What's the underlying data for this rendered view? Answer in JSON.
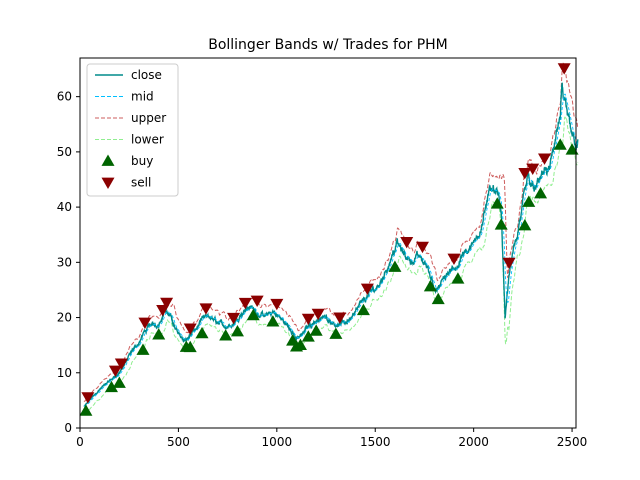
{
  "chart_data": {
    "type": "line",
    "title": "Bollinger Bands w/ Trades for PHM",
    "xlabel": "",
    "ylabel": "",
    "xlim": [
      0,
      2520
    ],
    "ylim": [
      0,
      67
    ],
    "xticks": [
      0,
      500,
      1000,
      1500,
      2000,
      2500
    ],
    "yticks": [
      0,
      10,
      20,
      30,
      40,
      50,
      60
    ],
    "legend_position": "top-left",
    "grid": false,
    "colors": {
      "close": "#008b8b",
      "mid": "#00bfff",
      "upper": "#cd5c5c",
      "lower": "#90ee90",
      "buy": "#006400",
      "sell": "#8b0000"
    },
    "legend": [
      {
        "key": "close",
        "label": "close",
        "style": "solid"
      },
      {
        "key": "mid",
        "label": "mid",
        "style": "dashed"
      },
      {
        "key": "upper",
        "label": "upper",
        "style": "dashed"
      },
      {
        "key": "lower",
        "label": "lower",
        "style": "dashed"
      },
      {
        "key": "buy",
        "label": "buy",
        "style": "marker-up"
      },
      {
        "key": "sell",
        "label": "sell",
        "style": "marker-down"
      }
    ],
    "close_anchors": [
      [
        25,
        4
      ],
      [
        60,
        5.5
      ],
      [
        100,
        7
      ],
      [
        150,
        8.5
      ],
      [
        200,
        10
      ],
      [
        250,
        13
      ],
      [
        300,
        15.5
      ],
      [
        330,
        17.5
      ],
      [
        360,
        18.5
      ],
      [
        400,
        19
      ],
      [
        430,
        21.5
      ],
      [
        460,
        20
      ],
      [
        500,
        17
      ],
      [
        540,
        16
      ],
      [
        580,
        17.5
      ],
      [
        620,
        19.5
      ],
      [
        660,
        20
      ],
      [
        700,
        19
      ],
      [
        740,
        18.5
      ],
      [
        780,
        19
      ],
      [
        820,
        21
      ],
      [
        860,
        22
      ],
      [
        900,
        21
      ],
      [
        940,
        20
      ],
      [
        980,
        21
      ],
      [
        1000,
        20.5
      ],
      [
        1040,
        19
      ],
      [
        1080,
        17.5
      ],
      [
        1100,
        16
      ],
      [
        1130,
        17
      ],
      [
        1160,
        18.5
      ],
      [
        1200,
        19.5
      ],
      [
        1240,
        20
      ],
      [
        1280,
        19.5
      ],
      [
        1320,
        18.5
      ],
      [
        1360,
        19.5
      ],
      [
        1400,
        21
      ],
      [
        1440,
        23
      ],
      [
        1480,
        24.5
      ],
      [
        1520,
        26
      ],
      [
        1560,
        29
      ],
      [
        1590,
        32
      ],
      [
        1610,
        33.5
      ],
      [
        1640,
        31.5
      ],
      [
        1680,
        30.5
      ],
      [
        1720,
        31
      ],
      [
        1760,
        29.5
      ],
      [
        1800,
        26
      ],
      [
        1820,
        25
      ],
      [
        1850,
        27
      ],
      [
        1880,
        28
      ],
      [
        1920,
        29.5
      ],
      [
        1950,
        32
      ],
      [
        1980,
        32.5
      ],
      [
        2000,
        33
      ],
      [
        2030,
        36
      ],
      [
        2060,
        40
      ],
      [
        2080,
        42
      ],
      [
        2100,
        44
      ],
      [
        2120,
        43
      ],
      [
        2140,
        38
      ],
      [
        2160,
        20
      ],
      [
        2180,
        28
      ],
      [
        2200,
        32
      ],
      [
        2220,
        34
      ],
      [
        2240,
        38
      ],
      [
        2260,
        44
      ],
      [
        2280,
        46
      ],
      [
        2300,
        44
      ],
      [
        2320,
        43
      ],
      [
        2340,
        45
      ],
      [
        2360,
        47
      ],
      [
        2380,
        46
      ],
      [
        2400,
        49
      ],
      [
        2420,
        53
      ],
      [
        2440,
        56
      ],
      [
        2450,
        61
      ],
      [
        2470,
        56
      ],
      [
        2490,
        54
      ],
      [
        2510,
        52
      ]
    ],
    "buy_x": [
      30,
      160,
      200,
      320,
      400,
      540,
      560,
      620,
      740,
      800,
      880,
      980,
      1080,
      1100,
      1120,
      1160,
      1200,
      1300,
      1440,
      1600,
      1780,
      1820,
      1920,
      2120,
      2140,
      2260,
      2280,
      2340,
      2440,
      2500
    ],
    "sell_x": [
      40,
      180,
      210,
      330,
      420,
      440,
      560,
      640,
      780,
      840,
      900,
      1000,
      1160,
      1210,
      1320,
      1460,
      1660,
      1740,
      1900,
      2180,
      2260,
      2300,
      2360,
      2460
    ]
  }
}
